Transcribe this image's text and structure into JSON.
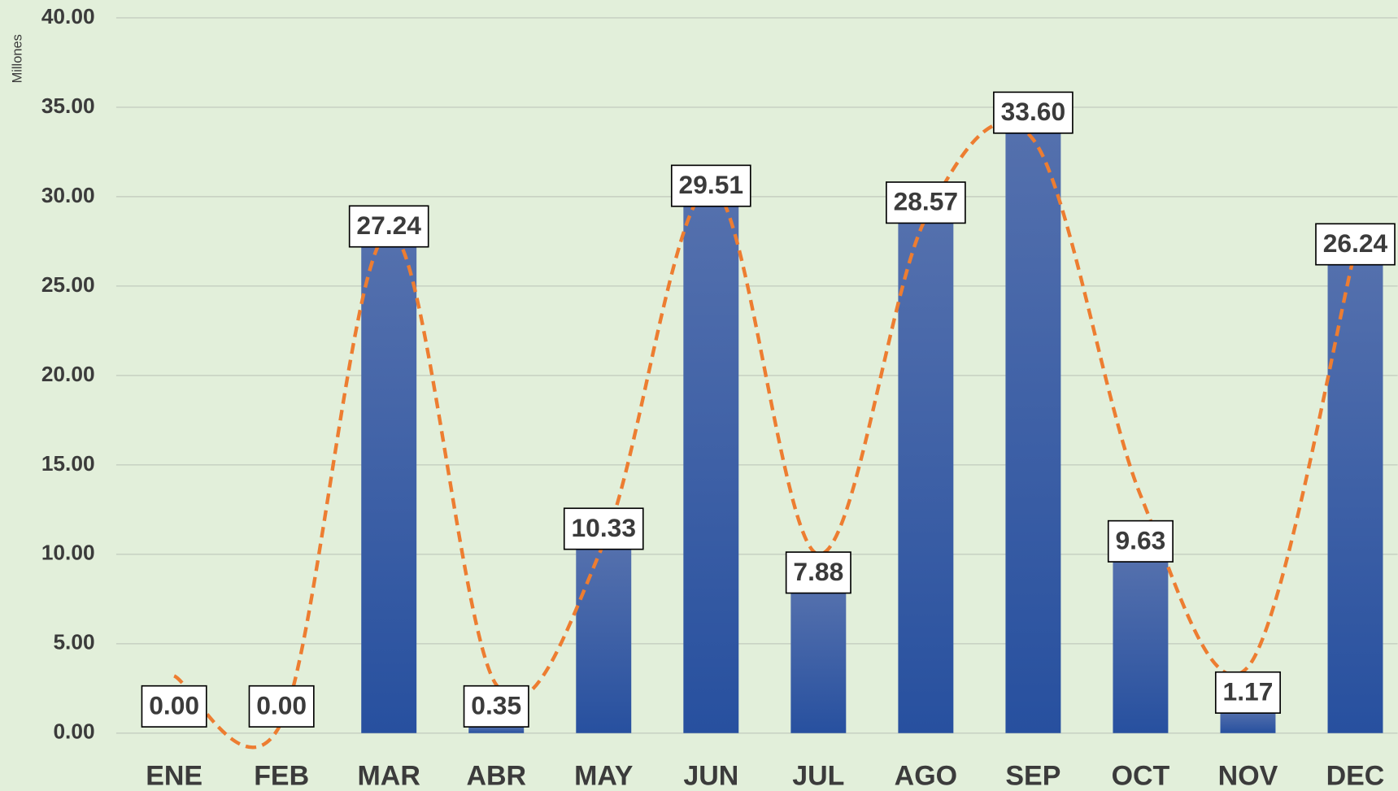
{
  "chart_data": {
    "type": "bar",
    "y_axis_label": "Millones",
    "categories": [
      "ENE",
      "FEB",
      "MAR",
      "ABR",
      "MAY",
      "JUN",
      "JUL",
      "AGO",
      "SEP",
      "OCT",
      "NOV",
      "DEC"
    ],
    "series": [
      {
        "type": "bar",
        "color": "#2f55a4",
        "values": [
          0,
          0,
          27.24,
          0.35,
          10.33,
          29.51,
          7.88,
          28.57,
          33.6,
          9.63,
          1.17,
          26.24
        ],
        "value_labels": [
          "0.00",
          "0.00",
          "27.24",
          "0.35",
          "10.33",
          "29.51",
          "7.88",
          "28.57",
          "33.60",
          "9.63",
          "1.17",
          "26.24"
        ]
      },
      {
        "type": "line",
        "color": "#ed7d31",
        "dashed": true,
        "smooth": true,
        "values": [
          3.2,
          0.6,
          28,
          2.7,
          10.6,
          30.5,
          10,
          28.8,
          33.2,
          13.3,
          3.7,
          27
        ]
      }
    ],
    "ylim": [
      0,
      40
    ],
    "yticks": [
      {
        "value": 0,
        "label": "0.00"
      },
      {
        "value": 5,
        "label": "5.00"
      },
      {
        "value": 10,
        "label": "10.00"
      },
      {
        "value": 15,
        "label": "15.00"
      },
      {
        "value": 20,
        "label": "20.00"
      },
      {
        "value": 25,
        "label": "25.00"
      },
      {
        "value": 30,
        "label": "30.00"
      },
      {
        "value": 35,
        "label": "35.00"
      },
      {
        "value": 40,
        "label": "40.00"
      }
    ],
    "grid": true
  }
}
